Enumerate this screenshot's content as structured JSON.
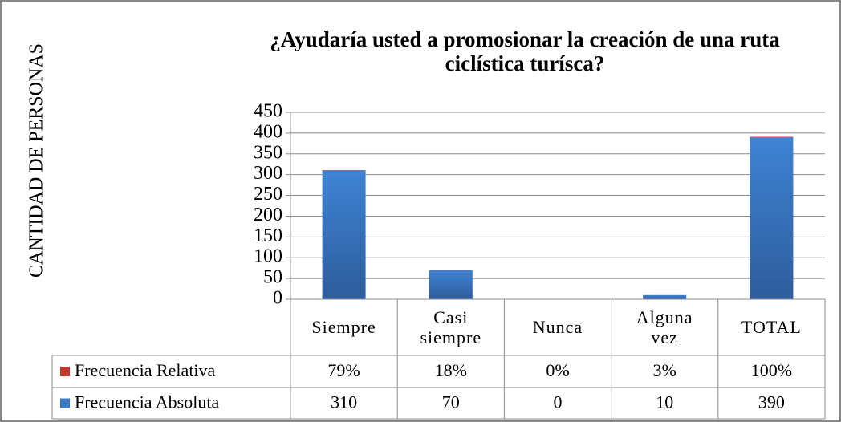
{
  "chart_data": {
    "type": "bar",
    "title": "¿Ayudaría usted a promosionar la creación de una ruta ciclística turísca?",
    "y_label": "CANTIDAD DE PERSONAS",
    "categories": [
      "Siempre",
      "Casi siempre",
      "Nunca",
      "Alguna vez",
      "TOTAL"
    ],
    "series": [
      {
        "name": "Frecuencia Relativa",
        "color": "#c0392b",
        "values": [
          0.79,
          0.18,
          0,
          0.03,
          1
        ],
        "value_labels": [
          "79%",
          "18%",
          "0%",
          "3%",
          "100%"
        ]
      },
      {
        "name": "Frecuencia Absoluta",
        "color": "#3b78c6",
        "values": [
          310,
          70,
          0,
          10,
          390
        ]
      }
    ],
    "stacked": true,
    "ylim": [
      0,
      450
    ],
    "yticks": [
      0,
      50,
      100,
      150,
      200,
      250,
      300,
      350,
      400,
      450
    ],
    "grid": true
  }
}
